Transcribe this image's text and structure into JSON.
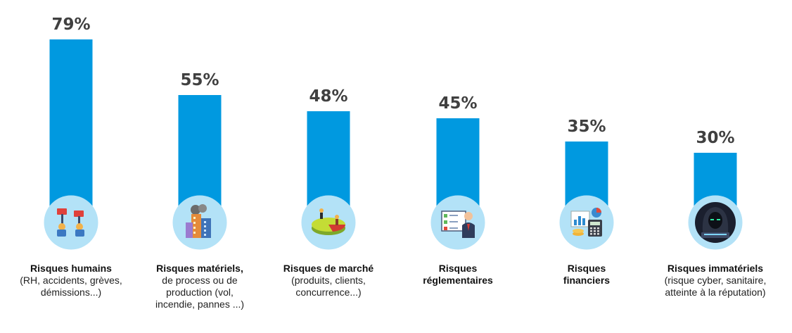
{
  "chart_data": {
    "type": "bar",
    "ylim": [
      0,
      100
    ],
    "categories": [
      {
        "title": "Risques humains",
        "detail": "(RH, accidents, grèves, démissions...)",
        "icon": "people-protest-icon",
        "value": 79,
        "label": "79%"
      },
      {
        "title": "Risques matériels,",
        "detail": "de process ou de production (vol, incendie, pannes ...)",
        "icon": "building-fire-icon",
        "value": 55,
        "label": "55%"
      },
      {
        "title": "Risques de marché",
        "detail": "(produits, clients, concurrence...)",
        "icon": "market-pie-chart-icon",
        "value": 48,
        "label": "48%"
      },
      {
        "title": "Risques réglementaires",
        "detail": "",
        "icon": "law-scale-icon",
        "value": 45,
        "label": "45%"
      },
      {
        "title": "Risques financiers",
        "detail": "",
        "icon": "finance-calculator-icon",
        "value": 35,
        "label": "35%"
      },
      {
        "title": "Risques immatériels",
        "detail": "(risque cyber, sanitaire, atteinte à la réputation)",
        "icon": "hacker-icon",
        "value": 30,
        "label": "30%"
      }
    ],
    "colors": {
      "bar": "#0099e0",
      "circle": "#b3e2f7",
      "value_text": "#404040"
    }
  }
}
